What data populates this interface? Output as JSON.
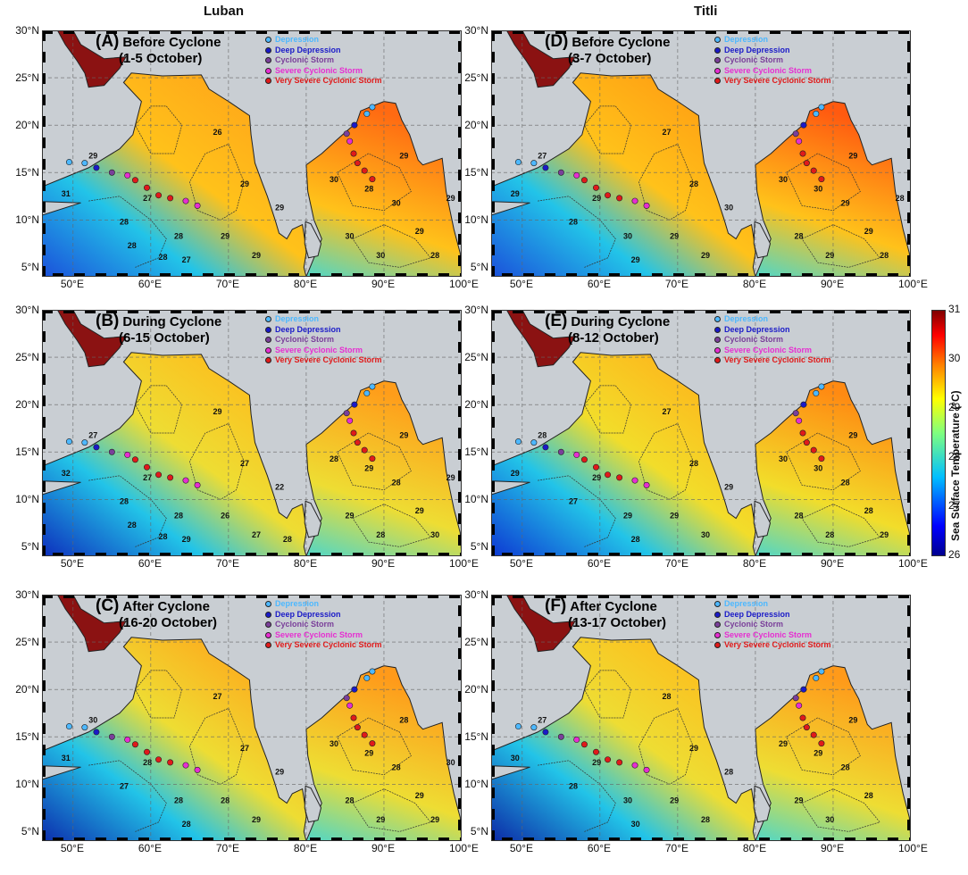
{
  "columns": [
    "Luban",
    "Titli"
  ],
  "y_ticks": [
    "30°N",
    "25°N",
    "20°N",
    "15°N",
    "10°N",
    "5°N"
  ],
  "x_ticks": [
    "50°E",
    "60°E",
    "70°E",
    "80°E",
    "90°E",
    "100°E"
  ],
  "legend": [
    {
      "label": "Depression",
      "color": "#4db8ff"
    },
    {
      "label": "Deep Depression",
      "color": "#1a1ac8"
    },
    {
      "label": "Cyclonic Storm",
      "color": "#7a3f9a"
    },
    {
      "label": "Severe Cyclonic Storm",
      "color": "#e62ed1"
    },
    {
      "label": "Very Severe Cyclonic Storm",
      "color": "#e01a1a"
    }
  ],
  "panels": [
    {
      "letter": "(A)",
      "phase": "Before Cyclone",
      "dates": "(1-5 October)",
      "contours": [
        "31",
        "29",
        "28",
        "27",
        "28",
        "27",
        "26",
        "29",
        "29",
        "29",
        "29",
        "30",
        "28",
        "29",
        "30",
        "30",
        "30",
        "29",
        "28",
        "29",
        "28",
        "28"
      ]
    },
    {
      "letter": "(B)",
      "phase": "During Cyclone",
      "dates": "(6-15 October)",
      "contours": [
        "32",
        "27",
        "28",
        "27",
        "28",
        "29",
        "29",
        "27",
        "26",
        "27",
        "22",
        "28",
        "29",
        "29",
        "28",
        "29",
        "28",
        "29",
        "30",
        "29",
        "28",
        "28",
        "28"
      ]
    },
    {
      "letter": "(C)",
      "phase": "After Cyclone",
      "dates": "(16-20 October)",
      "contours": [
        "31",
        "30",
        "27",
        "28",
        "28",
        "28",
        "27",
        "27",
        "28",
        "29",
        "29",
        "30",
        "29",
        "28",
        "28",
        "28",
        "29",
        "29",
        "29",
        "30"
      ]
    },
    {
      "letter": "(D)",
      "phase": "Before Cyclone",
      "dates": "(3-7 October)",
      "contours": [
        "29",
        "27",
        "28",
        "29",
        "30",
        "29",
        "27",
        "28",
        "29",
        "29",
        "30",
        "30",
        "30",
        "29",
        "29",
        "28",
        "29",
        "29",
        "28",
        "28"
      ]
    },
    {
      "letter": "(E)",
      "phase": "During Cyclone",
      "dates": "(8-12 October)",
      "contours": [
        "29",
        "28",
        "27",
        "29",
        "29",
        "28",
        "27",
        "28",
        "29",
        "30",
        "29",
        "30",
        "30",
        "29",
        "28",
        "28",
        "28",
        "28",
        "29"
      ]
    },
    {
      "letter": "(F)",
      "phase": "After Cyclone",
      "dates": "(13-17 October)",
      "contours": [
        "30",
        "27",
        "28",
        "29",
        "30",
        "30",
        "28",
        "29",
        "29",
        "28",
        "28",
        "29",
        "29",
        "29",
        "28",
        "29",
        "30",
        "28"
      ]
    }
  ],
  "colorbar": {
    "label": "Sea Surface Temperature (°C)",
    "ticks": [
      "31",
      "30",
      "29",
      "28",
      "27",
      "26"
    ],
    "range": [
      26,
      31
    ],
    "colors": [
      "#00008f",
      "#0000ff",
      "#00bfff",
      "#7fff7f",
      "#ffff00",
      "#ff7f00",
      "#ff0000",
      "#7f0000"
    ]
  }
}
